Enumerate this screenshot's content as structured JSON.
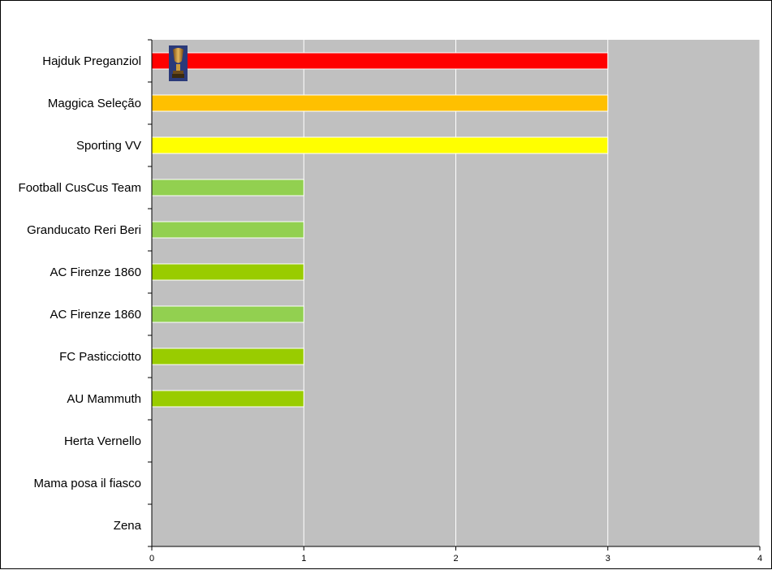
{
  "chart_data": {
    "type": "bar",
    "orientation": "horizontal",
    "categories": [
      "Hajduk Preganziol",
      "Maggica Seleção",
      "Sporting VV",
      "Football CusCus Team",
      "Granducato Reri Beri",
      "AC Firenze 1860",
      "AC Firenze 1860",
      "FC Pasticciotto",
      "AU Mammuth",
      "Herta Vernello",
      "Mama posa il fiasco",
      "Zena"
    ],
    "values": [
      3,
      3,
      3,
      1,
      1,
      1,
      1,
      1,
      1,
      0,
      0,
      0
    ],
    "bar_colors": [
      "#ff0000",
      "#ffc000",
      "#ffff00",
      "#92d050",
      "#92d050",
      "#99cc00",
      "#92d050",
      "#99cc00",
      "#99cc00",
      "#92d050",
      "#92d050",
      "#92d050"
    ],
    "xlim": [
      0,
      4
    ],
    "x_ticks": [
      "0",
      "1",
      "2",
      "3",
      "4"
    ],
    "grid": "vertical",
    "plot_background": "#c0c0c0",
    "annotation_icon": "trophy-icon",
    "annotation_category": "Hajduk Preganziol"
  }
}
